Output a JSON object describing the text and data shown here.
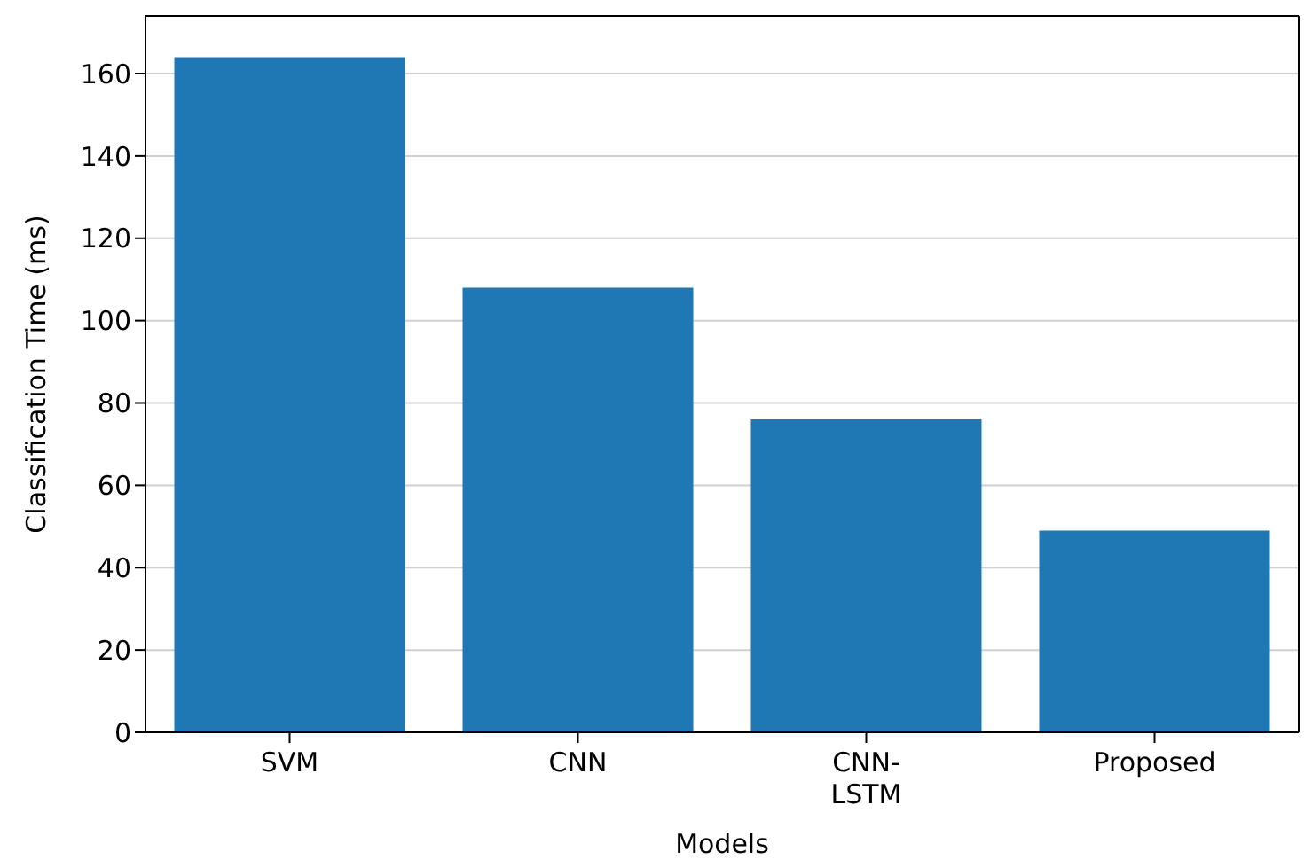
{
  "chart_data": {
    "type": "bar",
    "xlabel": "Models",
    "ylabel": "Classification Time (ms)",
    "categories": [
      "SVM",
      "CNN",
      "CNN-LSTM",
      "Proposed"
    ],
    "values": [
      164,
      108,
      76,
      49
    ],
    "color": "#1f77b4",
    "ylim": [
      0,
      174
    ],
    "yticks": [
      0,
      20,
      40,
      60,
      80,
      100,
      120,
      140,
      160
    ],
    "grid": "y"
  }
}
